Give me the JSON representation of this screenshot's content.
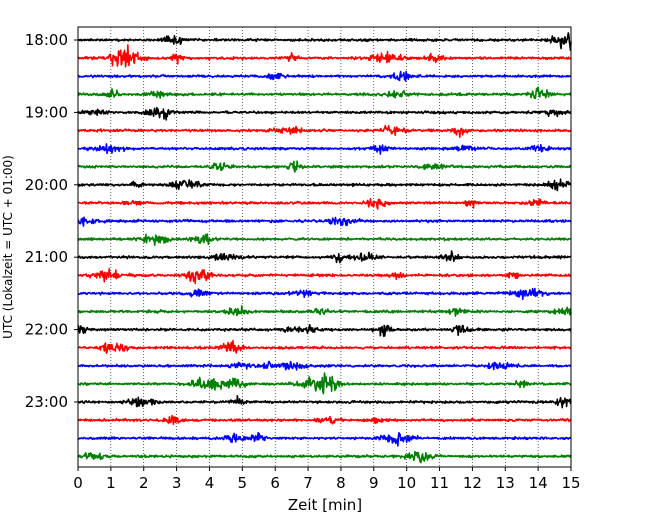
{
  "chart_data": {
    "type": "line",
    "subtype": "helicorder",
    "title": "",
    "xlabel": "Zeit  [min]",
    "ylabel": "UTC (Lokalzeit = UTC + 01:00)",
    "xlim": [
      0,
      15
    ],
    "x_ticks": [
      "0",
      "1",
      "2",
      "3",
      "4",
      "5",
      "6",
      "7",
      "8",
      "9",
      "10",
      "11",
      "12",
      "13",
      "14",
      "15"
    ],
    "y_ticks": [
      "18:00",
      "19:00",
      "20:00",
      "21:00",
      "22:00",
      "23:00"
    ],
    "row_interval_min": 15,
    "rows": 24,
    "first_row_time": "18:00",
    "trace_colors": [
      "#000000",
      "#ff0000",
      "#0000ff",
      "#008000"
    ],
    "grid": "vertical dotted lines at each minute",
    "events": [
      {
        "row_time": "18:15",
        "minute": 1.4,
        "relative_amplitude": 1.0
      },
      {
        "row_time": "22:45",
        "minute": 7.4,
        "relative_amplitude": 1.0
      },
      {
        "row_time": "21:15",
        "minute": 0.9,
        "relative_amplitude": 0.55
      },
      {
        "row_time": "21:30",
        "minute": 13.7,
        "relative_amplitude": 0.45
      },
      {
        "row_time": "21:45",
        "minute": 14.9,
        "relative_amplitude": 0.35
      }
    ]
  }
}
